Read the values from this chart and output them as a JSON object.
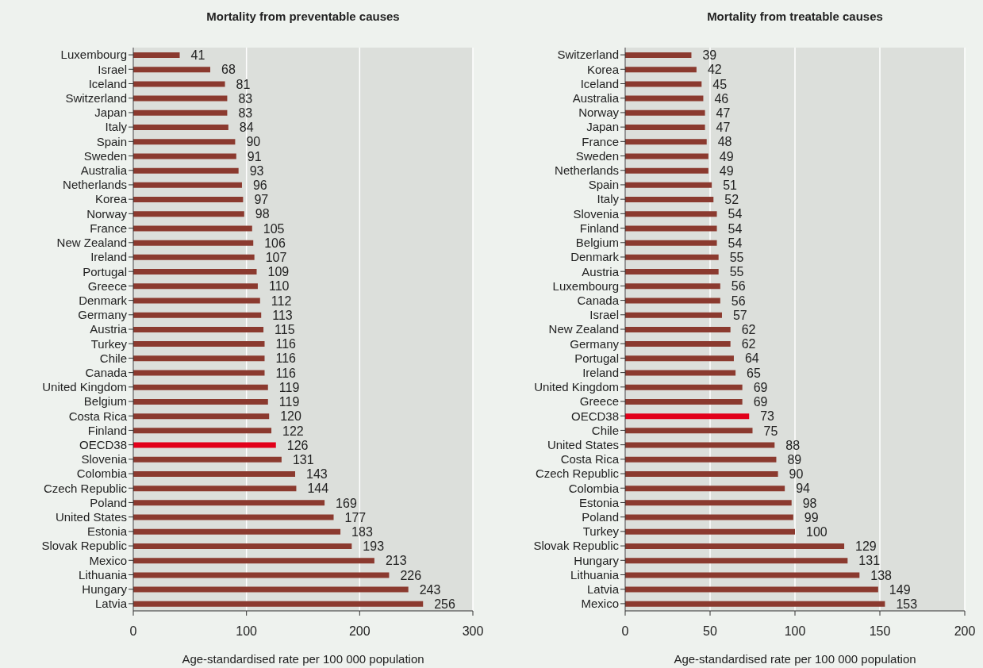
{
  "chart_data": [
    {
      "type": "bar",
      "orientation": "horizontal",
      "title": "Mortality from preventable causes",
      "xlabel": "Age-standardised rate per 100 000 population",
      "categories": [
        "Luxembourg",
        "Israel",
        "Iceland",
        "Switzerland",
        "Japan",
        "Italy",
        "Spain",
        "Sweden",
        "Australia",
        "Netherlands",
        "Korea",
        "Norway",
        "France",
        "New Zealand",
        "Ireland",
        "Portugal",
        "Greece",
        "Denmark",
        "Germany",
        "Austria",
        "Turkey",
        "Chile",
        "Canada",
        "United Kingdom",
        "Belgium",
        "Costa Rica",
        "Finland",
        "OECD38",
        "Slovenia",
        "Colombia",
        "Czech Republic",
        "Poland",
        "United States",
        "Estonia",
        "Slovak Republic",
        "Mexico",
        "Lithuania",
        "Hungary",
        "Latvia"
      ],
      "values": [
        41,
        68,
        81,
        83,
        83,
        84,
        90,
        91,
        93,
        96,
        97,
        98,
        105,
        106,
        107,
        109,
        110,
        112,
        113,
        115,
        116,
        116,
        116,
        119,
        119,
        120,
        122,
        126,
        131,
        143,
        144,
        169,
        177,
        183,
        193,
        213,
        226,
        243,
        256
      ],
      "colors": [
        "#8b3a2f",
        "#8b3a2f",
        "#8b3a2f",
        "#8b3a2f",
        "#8b3a2f",
        "#8b3a2f",
        "#8b3a2f",
        "#8b3a2f",
        "#8b3a2f",
        "#8b3a2f",
        "#8b3a2f",
        "#8b3a2f",
        "#8b3a2f",
        "#8b3a2f",
        "#8b3a2f",
        "#8b3a2f",
        "#8b3a2f",
        "#8b3a2f",
        "#8b3a2f",
        "#8b3a2f",
        "#8b3a2f",
        "#8b3a2f",
        "#8b3a2f",
        "#8b3a2f",
        "#8b3a2f",
        "#8b3a2f",
        "#8b3a2f",
        "#e2001a",
        "#8b3a2f",
        "#8b3a2f",
        "#8b3a2f",
        "#8b3a2f",
        "#8b3a2f",
        "#8b3a2f",
        "#8b3a2f",
        "#8b3a2f",
        "#8b3a2f",
        "#8b3a2f",
        "#8b3a2f"
      ],
      "xlim": [
        0,
        300
      ],
      "xticks": [
        0,
        100,
        200,
        300
      ],
      "grid": "x",
      "data_labels": true
    },
    {
      "type": "bar",
      "orientation": "horizontal",
      "title": "Mortality from treatable causes",
      "xlabel": "Age-standardised rate per 100 000 population",
      "categories": [
        "Switzerland",
        "Korea",
        "Iceland",
        "Australia",
        "Norway",
        "Japan",
        "France",
        "Sweden",
        "Netherlands",
        "Spain",
        "Italy",
        "Slovenia",
        "Finland",
        "Belgium",
        "Denmark",
        "Austria",
        "Luxembourg",
        "Canada",
        "Israel",
        "New Zealand",
        "Germany",
        "Portugal",
        "Ireland",
        "United Kingdom",
        "Greece",
        "OECD38",
        "Chile",
        "United States",
        "Costa Rica",
        "Czech Republic",
        "Colombia",
        "Estonia",
        "Poland",
        "Turkey",
        "Slovak Republic",
        "Hungary",
        "Lithuania",
        "Latvia",
        "Mexico"
      ],
      "values": [
        39,
        42,
        45,
        46,
        47,
        47,
        48,
        49,
        49,
        51,
        52,
        54,
        54,
        54,
        55,
        55,
        56,
        56,
        57,
        62,
        62,
        64,
        65,
        69,
        69,
        73,
        75,
        88,
        89,
        90,
        94,
        98,
        99,
        100,
        129,
        131,
        138,
        149,
        153
      ],
      "colors": [
        "#8b3a2f",
        "#8b3a2f",
        "#8b3a2f",
        "#8b3a2f",
        "#8b3a2f",
        "#8b3a2f",
        "#8b3a2f",
        "#8b3a2f",
        "#8b3a2f",
        "#8b3a2f",
        "#8b3a2f",
        "#8b3a2f",
        "#8b3a2f",
        "#8b3a2f",
        "#8b3a2f",
        "#8b3a2f",
        "#8b3a2f",
        "#8b3a2f",
        "#8b3a2f",
        "#8b3a2f",
        "#8b3a2f",
        "#8b3a2f",
        "#8b3a2f",
        "#8b3a2f",
        "#8b3a2f",
        "#e2001a",
        "#8b3a2f",
        "#8b3a2f",
        "#8b3a2f",
        "#8b3a2f",
        "#8b3a2f",
        "#8b3a2f",
        "#8b3a2f",
        "#8b3a2f",
        "#8b3a2f",
        "#8b3a2f",
        "#8b3a2f",
        "#8b3a2f",
        "#8b3a2f"
      ],
      "xlim": [
        0,
        200
      ],
      "xticks": [
        0,
        50,
        100,
        150,
        200
      ],
      "grid": "x",
      "data_labels": true
    }
  ]
}
